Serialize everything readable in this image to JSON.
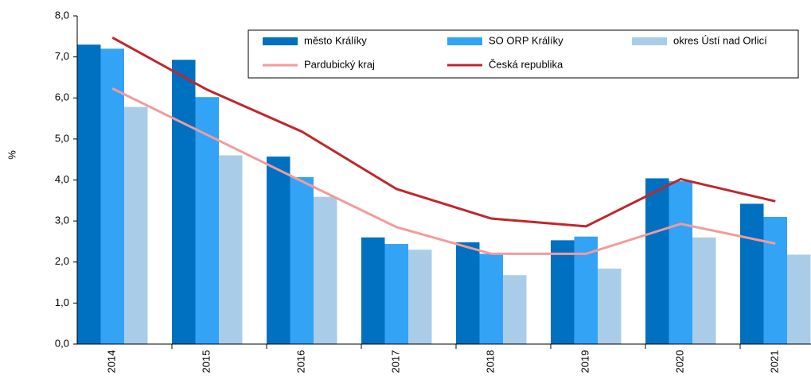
{
  "chart_data": {
    "type": "bar",
    "y_label": "%",
    "categories": [
      "2014",
      "2015",
      "2016",
      "2017",
      "2018",
      "2019",
      "2020",
      "2021"
    ],
    "series": [
      {
        "name": "město Králíky",
        "color": "#0070c0",
        "type": "bar",
        "values": [
          7.3,
          6.93,
          4.57,
          2.6,
          2.48,
          2.53,
          4.04,
          3.42
        ]
      },
      {
        "name": "SO ORP Králíky",
        "color": "#33a3f5",
        "type": "bar",
        "values": [
          7.2,
          6.02,
          4.07,
          2.44,
          2.2,
          2.62,
          3.97,
          3.1
        ]
      },
      {
        "name": "okres Ústí nad Orlicí",
        "color": "#a9cde8",
        "type": "bar",
        "values": [
          5.78,
          4.6,
          3.59,
          2.3,
          1.68,
          1.84,
          2.6,
          2.18
        ]
      },
      {
        "name": "Pardubický kraj",
        "color": "#f29b9b",
        "type": "line",
        "values": [
          6.23,
          5.1,
          3.97,
          2.85,
          2.2,
          2.2,
          2.93,
          2.45
        ]
      },
      {
        "name": "Česká republika",
        "color": "#c0262c",
        "type": "line",
        "values": [
          7.47,
          6.2,
          5.18,
          3.78,
          3.06,
          2.87,
          4.02,
          3.48
        ]
      }
    ],
    "ylim": [
      0,
      8
    ],
    "yticks": [
      {
        "value": 0,
        "label": "0,0"
      },
      {
        "value": 1,
        "label": "1,0"
      },
      {
        "value": 2,
        "label": "2,0"
      },
      {
        "value": 3,
        "label": "3,0"
      },
      {
        "value": 4,
        "label": "4,0"
      },
      {
        "value": 5,
        "label": "5,0"
      },
      {
        "value": 6,
        "label": "6,0"
      },
      {
        "value": 7,
        "label": "7,0"
      },
      {
        "value": 8,
        "label": "8,0"
      }
    ],
    "legend": "top-right"
  }
}
